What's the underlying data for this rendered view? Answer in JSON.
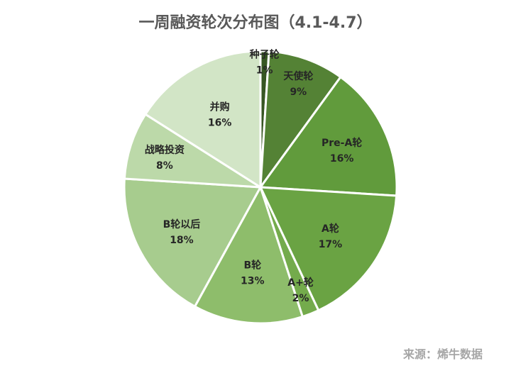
{
  "chart_data": {
    "type": "pie",
    "title": "一周融资轮次分布图（4.1-4.7）",
    "slices": [
      {
        "label": "种子轮",
        "value": 1,
        "value_label": "1%",
        "color": "#375623"
      },
      {
        "label": "天使轮",
        "value": 9,
        "value_label": "9%",
        "color": "#548235"
      },
      {
        "label": "Pre-A轮",
        "value": 16,
        "value_label": "16%",
        "color": "#619b3c"
      },
      {
        "label": "A轮",
        "value": 17,
        "value_label": "17%",
        "color": "#6aa343"
      },
      {
        "label": "A+轮",
        "value": 2,
        "value_label": "2%",
        "color": "#74ab4c"
      },
      {
        "label": "B轮",
        "value": 13,
        "value_label": "13%",
        "color": "#8ebd6b"
      },
      {
        "label": "B轮以后",
        "value": 18,
        "value_label": "18%",
        "color": "#a7cc8e"
      },
      {
        "label": "战略投资",
        "value": 8,
        "value_label": "8%",
        "color": "#bcd9a9"
      },
      {
        "label": "并购",
        "value": 16,
        "value_label": "16%",
        "color": "#d2e5c6"
      }
    ],
    "source": "来源：烯牛数据"
  }
}
